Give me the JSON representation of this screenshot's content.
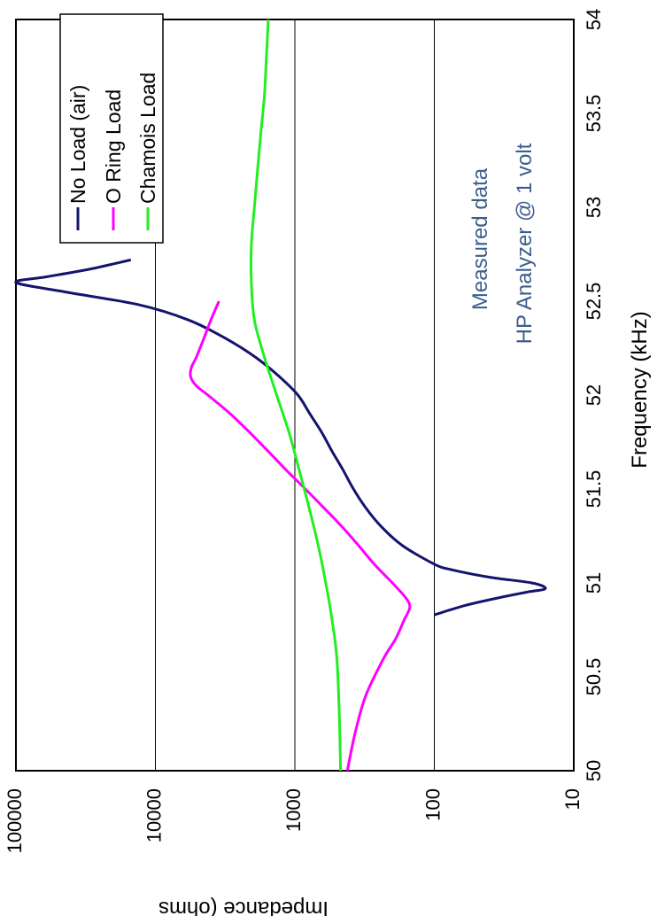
{
  "chart_data": {
    "type": "line",
    "orientation": "rotated-90-clockwise",
    "xlabel": "Frequency (kHz)",
    "ylabel": "Impedance (ohms",
    "xlim": [
      50,
      54
    ],
    "ylim": [
      10,
      100000
    ],
    "y_scale": "log",
    "x_ticks": [
      "50",
      "50.5",
      "51",
      "51.5",
      "52",
      "52.5",
      "53",
      "53.5",
      "54"
    ],
    "y_ticks": [
      "100000",
      "10000",
      "1000",
      "100",
      "10"
    ],
    "y_tick_values": [
      100000,
      10000,
      1000,
      100,
      10
    ],
    "grid": "horizontal-major",
    "legend_position": "top-left",
    "annotations": [
      "Measured data",
      "HP Analyzer @ 1 volt"
    ],
    "annotation_color": "#3b5e8c",
    "series": [
      {
        "name": "No Load (air)",
        "color": "#14146e",
        "x": [
          50.83,
          50.88,
          50.92,
          50.95,
          50.97,
          51.0,
          51.03,
          51.07,
          51.1,
          51.2,
          51.3,
          51.4,
          51.5,
          51.6,
          51.7,
          51.8,
          51.9,
          52.0,
          52.1,
          52.2,
          52.3,
          52.4,
          52.48,
          52.55,
          52.6,
          52.63,
          52.67,
          52.72
        ],
        "y": [
          100,
          60,
          35,
          22,
          16,
          20,
          40,
          75,
          100,
          170,
          240,
          310,
          380,
          450,
          540,
          640,
          780,
          950,
          1300,
          1900,
          3100,
          5800,
          13000,
          45000,
          100000,
          60000,
          30000,
          15000
        ]
      },
      {
        "name": "O Ring Load",
        "color": "#ff00ff",
        "x": [
          50.0,
          50.2,
          50.4,
          50.6,
          50.7,
          50.8,
          50.87,
          50.92,
          51.0,
          51.1,
          51.2,
          51.3,
          51.4,
          51.5,
          51.6,
          51.7,
          51.8,
          51.9,
          52.0,
          52.05,
          52.1,
          52.15,
          52.2,
          52.3,
          52.4,
          52.5
        ],
        "y": [
          420,
          370,
          310,
          230,
          190,
          165,
          150,
          160,
          200,
          270,
          350,
          460,
          620,
          840,
          1150,
          1550,
          2100,
          2900,
          4200,
          5100,
          5600,
          5500,
          5100,
          4500,
          4000,
          3500
        ]
      },
      {
        "name": "Chamois Load",
        "color": "#22ee22",
        "x": [
          50.0,
          50.3,
          50.6,
          50.8,
          51.0,
          51.2,
          51.4,
          51.6,
          51.8,
          52.0,
          52.2,
          52.4,
          52.6,
          52.8,
          53.0,
          53.2,
          53.4,
          53.6,
          53.8,
          54.0
        ],
        "y": [
          470,
          480,
          500,
          540,
          600,
          680,
          790,
          930,
          1100,
          1350,
          1650,
          1950,
          2050,
          2050,
          1950,
          1850,
          1750,
          1650,
          1600,
          1550
        ]
      }
    ]
  }
}
